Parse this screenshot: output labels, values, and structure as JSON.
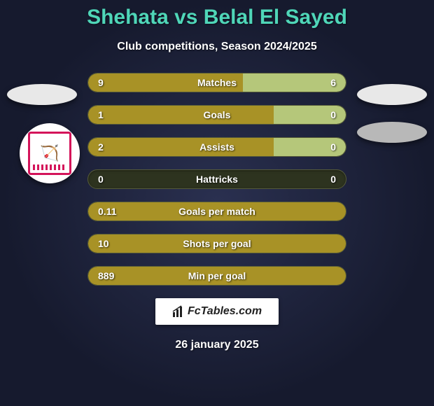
{
  "title": "Shehata vs Belal El Sayed",
  "subtitle": "Club competitions, Season 2024/2025",
  "date": "26 january 2025",
  "fctables_label": "FcTables.com",
  "colors": {
    "title": "#4fd6b8",
    "bar_track": "#2d331f",
    "bar_left": "#a89226",
    "bar_right": "#b5c77a",
    "text": "#ffffff"
  },
  "bars": [
    {
      "label": "Matches",
      "left_val": "9",
      "right_val": "6",
      "left_pct": 60,
      "right_pct": 40
    },
    {
      "label": "Goals",
      "left_val": "1",
      "right_val": "0",
      "left_pct": 72,
      "right_pct": 28
    },
    {
      "label": "Assists",
      "left_val": "2",
      "right_val": "0",
      "left_pct": 72,
      "right_pct": 28
    },
    {
      "label": "Hattricks",
      "left_val": "0",
      "right_val": "0",
      "left_pct": 0,
      "right_pct": 0
    },
    {
      "label": "Goals per match",
      "left_val": "0.11",
      "right_val": "",
      "left_pct": 100,
      "right_pct": 0
    },
    {
      "label": "Shots per goal",
      "left_val": "10",
      "right_val": "",
      "left_pct": 100,
      "right_pct": 0
    },
    {
      "label": "Min per goal",
      "left_val": "889",
      "right_val": "",
      "left_pct": 100,
      "right_pct": 0
    }
  ]
}
